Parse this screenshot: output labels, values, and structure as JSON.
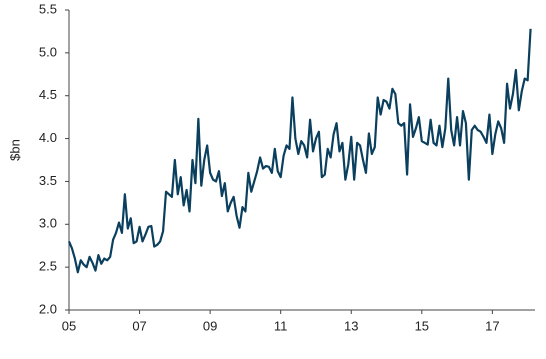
{
  "chart_data": {
    "type": "line",
    "y_label": "$bn",
    "categories": [
      "05",
      null,
      null,
      null,
      null,
      null,
      null,
      null,
      null,
      null,
      null,
      null,
      null,
      null,
      null,
      null,
      null,
      null,
      null,
      null,
      null,
      null,
      null,
      null,
      "07",
      null,
      null,
      null,
      null,
      null,
      null,
      null,
      null,
      null,
      null,
      null,
      null,
      null,
      null,
      null,
      null,
      null,
      null,
      null,
      null,
      null,
      null,
      null,
      "09",
      null,
      null,
      null,
      null,
      null,
      null,
      null,
      null,
      null,
      null,
      null,
      null,
      null,
      null,
      null,
      null,
      null,
      null,
      null,
      null,
      null,
      null,
      null,
      "11",
      null,
      null,
      null,
      null,
      null,
      null,
      null,
      null,
      null,
      null,
      null,
      null,
      null,
      null,
      null,
      null,
      null,
      null,
      null,
      null,
      null,
      null,
      null,
      "13",
      null,
      null,
      null,
      null,
      null,
      null,
      null,
      null,
      null,
      null,
      null,
      null,
      null,
      null,
      null,
      null,
      null,
      null,
      null,
      null,
      null,
      null,
      null,
      "15",
      null,
      null,
      null,
      null,
      null,
      null,
      null,
      null,
      null,
      null,
      null,
      null,
      null,
      null,
      null,
      null,
      null,
      null,
      null,
      null,
      null,
      null,
      null,
      "17",
      null,
      null,
      null,
      null,
      null,
      null,
      null,
      null,
      null,
      null,
      null,
      null,
      null
    ],
    "series": [
      {
        "color": "#0b3f5e",
        "values": [
          2.8,
          2.72,
          2.6,
          2.44,
          2.58,
          2.53,
          2.5,
          2.62,
          2.55,
          2.46,
          2.64,
          2.54,
          2.6,
          2.58,
          2.62,
          2.82,
          2.9,
          3.02,
          2.9,
          3.35,
          2.95,
          3.07,
          2.78,
          2.8,
          2.97,
          2.8,
          2.88,
          2.97,
          2.98,
          2.74,
          2.76,
          2.8,
          2.92,
          3.38,
          3.35,
          3.32,
          3.75,
          3.35,
          3.55,
          3.22,
          3.4,
          3.15,
          3.75,
          3.48,
          4.23,
          3.45,
          3.75,
          3.92,
          3.6,
          3.52,
          3.5,
          3.62,
          3.33,
          3.48,
          3.15,
          3.25,
          3.32,
          3.1,
          2.96,
          3.2,
          3.15,
          3.6,
          3.38,
          3.5,
          3.62,
          3.78,
          3.65,
          3.68,
          3.67,
          3.6,
          3.88,
          3.62,
          3.55,
          3.8,
          3.92,
          3.88,
          4.48,
          4.0,
          3.82,
          3.97,
          3.92,
          3.78,
          4.22,
          3.85,
          4.0,
          4.08,
          3.55,
          3.58,
          3.88,
          3.78,
          4.05,
          4.18,
          3.85,
          3.95,
          3.52,
          3.7,
          4.02,
          3.52,
          3.95,
          3.92,
          3.75,
          3.6,
          4.06,
          3.82,
          3.9,
          4.48,
          4.28,
          4.45,
          4.43,
          4.35,
          4.58,
          4.52,
          4.18,
          4.15,
          4.18,
          3.58,
          4.4,
          4.02,
          4.12,
          4.25,
          3.97,
          3.95,
          3.93,
          4.22,
          3.95,
          3.92,
          4.15,
          3.9,
          4.12,
          4.7,
          4.1,
          3.92,
          4.25,
          3.92,
          4.32,
          4.18,
          3.52,
          4.1,
          4.15,
          4.1,
          4.08,
          4.02,
          3.95,
          4.28,
          3.82,
          4.05,
          4.2,
          4.12,
          3.95,
          4.64,
          4.35,
          4.52,
          4.8,
          4.33,
          4.55,
          4.7,
          4.68,
          5.28
        ]
      }
    ],
    "ylim": [
      2,
      5.5
    ],
    "yticks": [
      {
        "value": 2,
        "label": "2.0"
      },
      2.5,
      {
        "value": 3,
        "label": "3.0"
      },
      3.5,
      {
        "value": 4,
        "label": "4.0"
      },
      4.5,
      {
        "value": 5,
        "label": "5.0"
      },
      5.5
    ]
  }
}
